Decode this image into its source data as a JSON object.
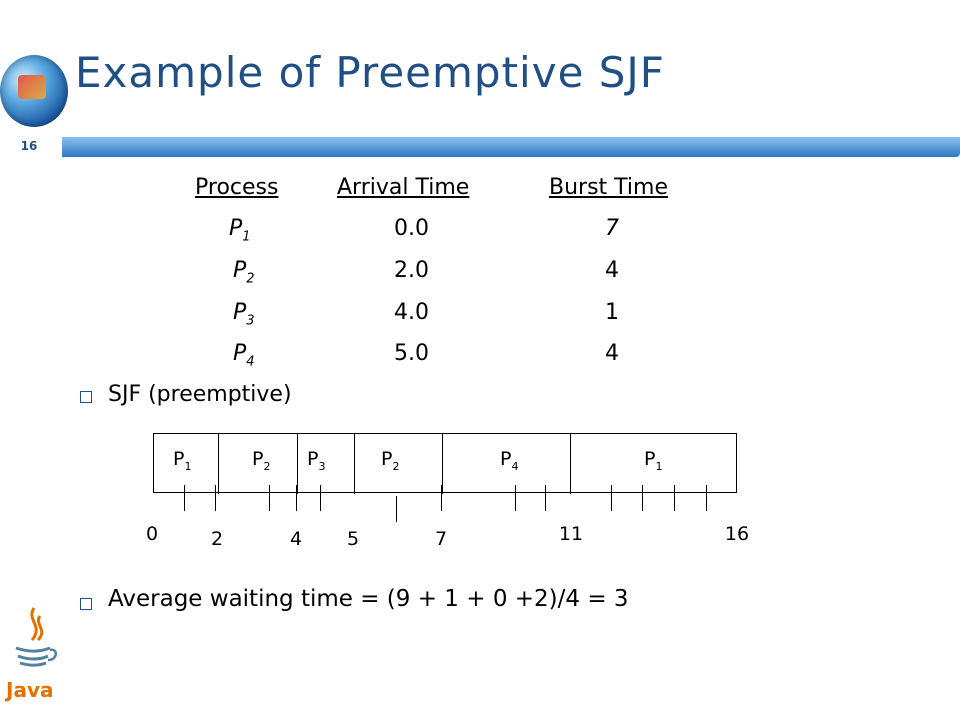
{
  "slide": {
    "title": "Example of Preemptive SJF",
    "page_number": "16"
  },
  "table": {
    "headers": [
      "Process",
      "Arrival Time",
      "Burst Time"
    ],
    "rows": [
      {
        "process": "P",
        "sub": "1",
        "arrival": "0.0",
        "burst": "7"
      },
      {
        "process": "P",
        "sub": "2",
        "arrival": "2.0",
        "burst": "4"
      },
      {
        "process": "P",
        "sub": "3",
        "arrival": "4.0",
        "burst": "1"
      },
      {
        "process": "P",
        "sub": "4",
        "arrival": "5.0",
        "burst": "4"
      }
    ]
  },
  "bullets": [
    "SJF (preemptive)",
    "Average waiting time = (9 + 1 + 0 +2)/4 = 3"
  ],
  "gantt": {
    "segments": [
      {
        "label": "P",
        "sub": "1"
      },
      {
        "label": "P",
        "sub": "2"
      },
      {
        "label": "P",
        "sub": "3"
      },
      {
        "label": "P",
        "sub": "2"
      },
      {
        "label": "P",
        "sub": "4"
      },
      {
        "label": "P",
        "sub": "1"
      }
    ],
    "times": [
      "0",
      "2",
      "4",
      "5",
      "7",
      "11",
      "16"
    ]
  },
  "logos": {
    "top_left": "globe-logo-icon",
    "bottom_left": "java-logo-icon",
    "java_text": "Java"
  }
}
